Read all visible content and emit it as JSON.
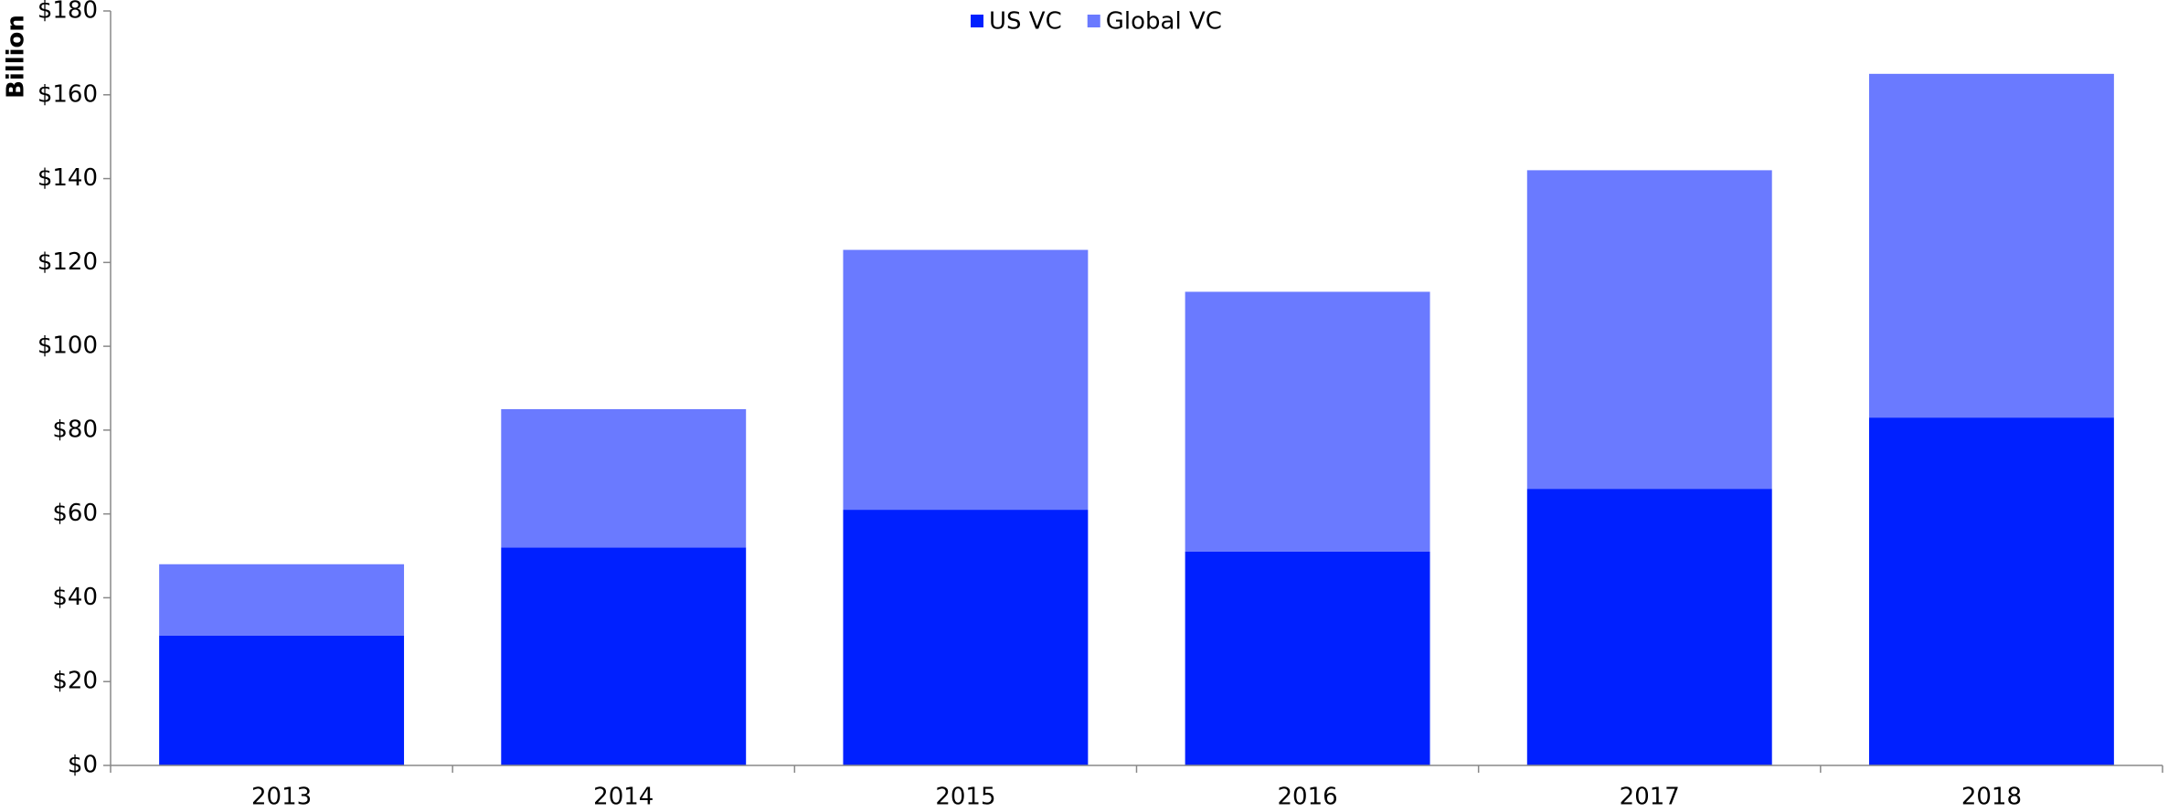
{
  "chart_data": {
    "type": "stacked_bar",
    "y_label": "Billion",
    "categories": [
      "2013",
      "2014",
      "2015",
      "2016",
      "2017",
      "2018"
    ],
    "series": [
      {
        "name": "US VC",
        "color": "#0020ff",
        "values": [
          31,
          52,
          61,
          51,
          66,
          83
        ]
      },
      {
        "name": "Global VC",
        "color": "#6a7aff",
        "values": [
          17,
          33,
          62,
          62,
          76,
          82
        ]
      }
    ],
    "ylim": [
      0,
      180
    ],
    "yticks": [
      {
        "value": 0,
        "label": "$0"
      },
      {
        "value": 20,
        "label": "$20"
      },
      {
        "value": 40,
        "label": "$40"
      },
      {
        "value": 60,
        "label": "$60"
      },
      {
        "value": 80,
        "label": "$80"
      },
      {
        "value": 100,
        "label": "$100"
      },
      {
        "value": 120,
        "label": "$120"
      },
      {
        "value": 140,
        "label": "$140"
      },
      {
        "value": 160,
        "label": "$160"
      },
      {
        "value": 180,
        "label": "$180"
      }
    ],
    "legend": "top",
    "grid": false
  }
}
